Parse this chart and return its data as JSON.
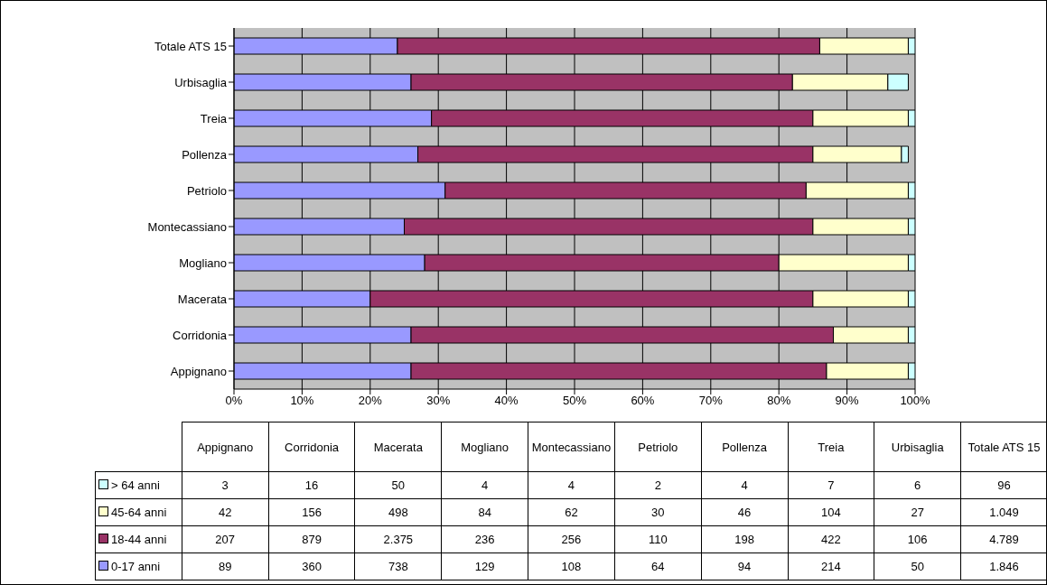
{
  "chart_data": [
    {
      "type": "bar",
      "orientation": "horizontal",
      "stacked": true,
      "grid": "x",
      "categories": [
        "Totale ATS 15",
        "Urbisaglia",
        "Treia",
        "Pollenza",
        "Petriolo",
        "Montecassiano",
        "Mogliano",
        "Macerata",
        "Corridonia",
        "Appignano"
      ],
      "xlim": [
        0,
        100
      ],
      "xticks": [
        {
          "value": 0,
          "label": "0%"
        },
        {
          "value": 10,
          "label": "10%"
        },
        {
          "value": 20,
          "label": "20%"
        },
        {
          "value": 30,
          "label": "30%"
        },
        {
          "value": 40,
          "label": "40%"
        },
        {
          "value": 50,
          "label": "50%"
        },
        {
          "value": 60,
          "label": "60%"
        },
        {
          "value": 70,
          "label": "70%"
        },
        {
          "value": 80,
          "label": "80%"
        },
        {
          "value": 90,
          "label": "90%"
        },
        {
          "value": 100,
          "label": "100%"
        }
      ],
      "series": [
        {
          "color": "#9999ff",
          "values": [
            24,
            26,
            29,
            27,
            31,
            25,
            28,
            20,
            26,
            26
          ]
        },
        {
          "color": "#993366",
          "values": [
            62,
            56,
            56,
            58,
            53,
            60,
            52,
            65,
            62,
            61
          ]
        },
        {
          "color": "#ffffcc",
          "values": [
            13,
            14,
            14,
            13,
            15,
            14,
            19,
            14,
            11,
            12
          ]
        },
        {
          "color": "#ccffff",
          "values": [
            1,
            3,
            1,
            1,
            1,
            1,
            1,
            1,
            1,
            1
          ]
        }
      ]
    },
    {
      "type": "other",
      "legend": "left",
      "categories": [
        "Appignano",
        "Corridonia",
        "Macerata",
        "Mogliano",
        "Montecassiano",
        "Petriolo",
        "Pollenza",
        "Treia",
        "Urbisaglia",
        "Totale ATS 15"
      ],
      "series": [
        {
          "name": "> 64 anni",
          "color": "#ccffff",
          "values": [
            3,
            16,
            50,
            4,
            4,
            2,
            4,
            7,
            6,
            96
          ],
          "value_labels": [
            "3",
            "16",
            "50",
            "4",
            "4",
            "2",
            "4",
            "7",
            "6",
            "96"
          ]
        },
        {
          "name": "45-64 anni",
          "color": "#ffffcc",
          "values": [
            42,
            156,
            498,
            84,
            62,
            30,
            46,
            104,
            27,
            1049
          ],
          "value_labels": [
            "42",
            "156",
            "498",
            "84",
            "62",
            "30",
            "46",
            "104",
            "27",
            "1.049"
          ]
        },
        {
          "name": "18-44 anni",
          "color": "#993366",
          "values": [
            207,
            879,
            2375,
            236,
            256,
            110,
            198,
            422,
            106,
            4789
          ],
          "value_labels": [
            "207",
            "879",
            "2.375",
            "236",
            "256",
            "110",
            "198",
            "422",
            "106",
            "4.789"
          ]
        },
        {
          "name": "0-17 anni",
          "color": "#9999ff",
          "values": [
            89,
            360,
            738,
            129,
            108,
            64,
            94,
            214,
            50,
            1846
          ],
          "value_labels": [
            "89",
            "360",
            "738",
            "129",
            "108",
            "64",
            "94",
            "214",
            "50",
            "1.846"
          ]
        }
      ]
    }
  ]
}
